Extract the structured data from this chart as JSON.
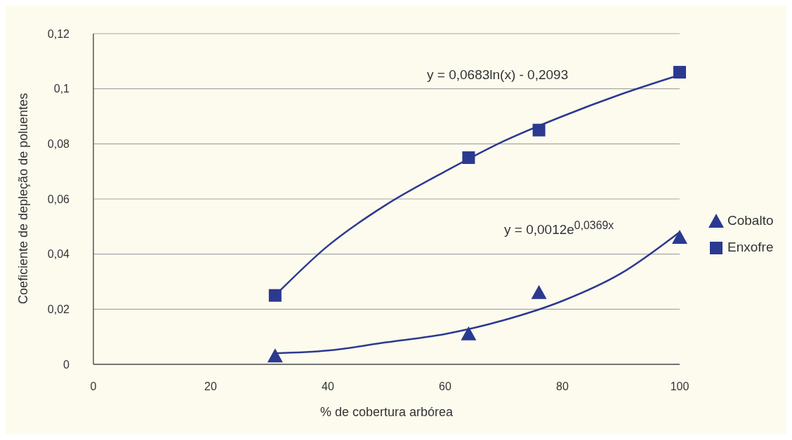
{
  "chart_data": {
    "type": "scatter",
    "xlabel": "% de cobertura arbórea",
    "ylabel": "Coeficiente de depleção de poluentes",
    "series": [
      {
        "name": "Cobalto",
        "color": "#2b3990",
        "marker": "triangle",
        "x": [
          31,
          64,
          76,
          100
        ],
        "values": [
          0.003,
          0.011,
          0.026,
          0.046
        ]
      },
      {
        "name": "Enxofre",
        "color": "#2b3990",
        "marker": "square",
        "x": [
          31,
          64,
          76,
          100
        ],
        "values": [
          0.025,
          0.075,
          0.085,
          0.106
        ]
      },
      {
        "type": "line",
        "color": "#2b3990",
        "marker": "none",
        "x": [
          31,
          40,
          50,
          60,
          70,
          80,
          90,
          100
        ],
        "values": [
          0.004,
          0.005,
          0.008,
          0.011,
          0.016,
          0.023,
          0.033,
          0.048
        ]
      },
      {
        "type": "line",
        "color": "#2b3990",
        "marker": "none",
        "x": [
          31,
          40,
          50,
          60,
          70,
          80,
          90,
          100
        ],
        "values": [
          0.025,
          0.043,
          0.058,
          0.07,
          0.081,
          0.09,
          0.098,
          0.105
        ]
      }
    ],
    "xlim": [
      0,
      100
    ],
    "xticks": [
      0,
      20,
      40,
      60,
      80,
      100
    ],
    "ylim": [
      0,
      0.12
    ],
    "yticks": [
      {
        "value": 0,
        "label": "0"
      },
      {
        "value": 0.02,
        "label": "0,02"
      },
      {
        "value": 0.04,
        "label": "0,04"
      },
      {
        "value": 0.06,
        "label": "0,06"
      },
      {
        "value": 0.08,
        "label": "0,08"
      },
      {
        "value": 0.1,
        "label": "0,1"
      },
      {
        "value": 0.12,
        "label": "0,12"
      }
    ],
    "grid": "y",
    "legend": "right",
    "line_style": "solid",
    "annotations": [
      "y = 0,0683ln(x) - 0,2093",
      "y = 0,0012e$^{0,0369x}$"
    ]
  }
}
